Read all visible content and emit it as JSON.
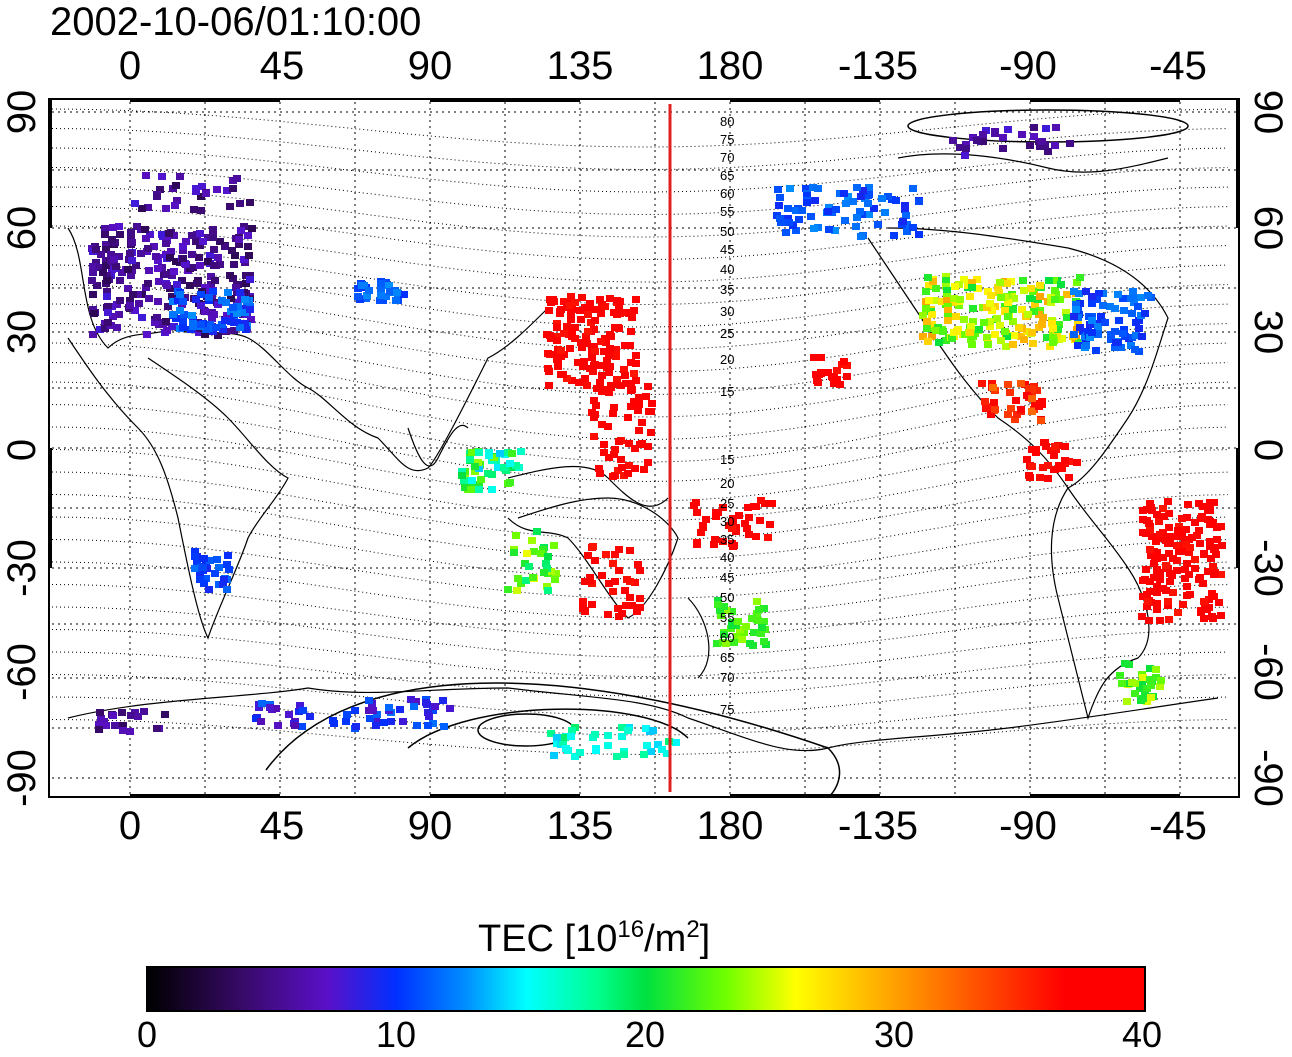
{
  "timestamp": "2002-10-06/01:10:00",
  "lon_ticks": [
    "0",
    "45",
    "90",
    "135",
    "180",
    "-135",
    "-90",
    "-45"
  ],
  "lat_ticks": [
    "90",
    "60",
    "30",
    "0",
    "-30",
    "-60",
    "-90"
  ],
  "contour_labels_north": [
    "80",
    "75",
    "70",
    "65",
    "60",
    "55",
    "50",
    "45",
    "40",
    "35",
    "30",
    "25",
    "20",
    "15"
  ],
  "contour_labels_south": [
    "15",
    "20",
    "25",
    "30",
    "35",
    "40",
    "45",
    "50",
    "55",
    "60",
    "65",
    "70",
    "75"
  ],
  "colorbar": {
    "title": "TEC  [10",
    "title_sup1": "16",
    "title_mid": "/m",
    "title_sup2": "2",
    "title_end": "]",
    "ticks": [
      "0",
      "10",
      "20",
      "30",
      "40"
    ],
    "range": [
      0,
      40
    ]
  },
  "meridian_marker_color": "#e02020"
}
